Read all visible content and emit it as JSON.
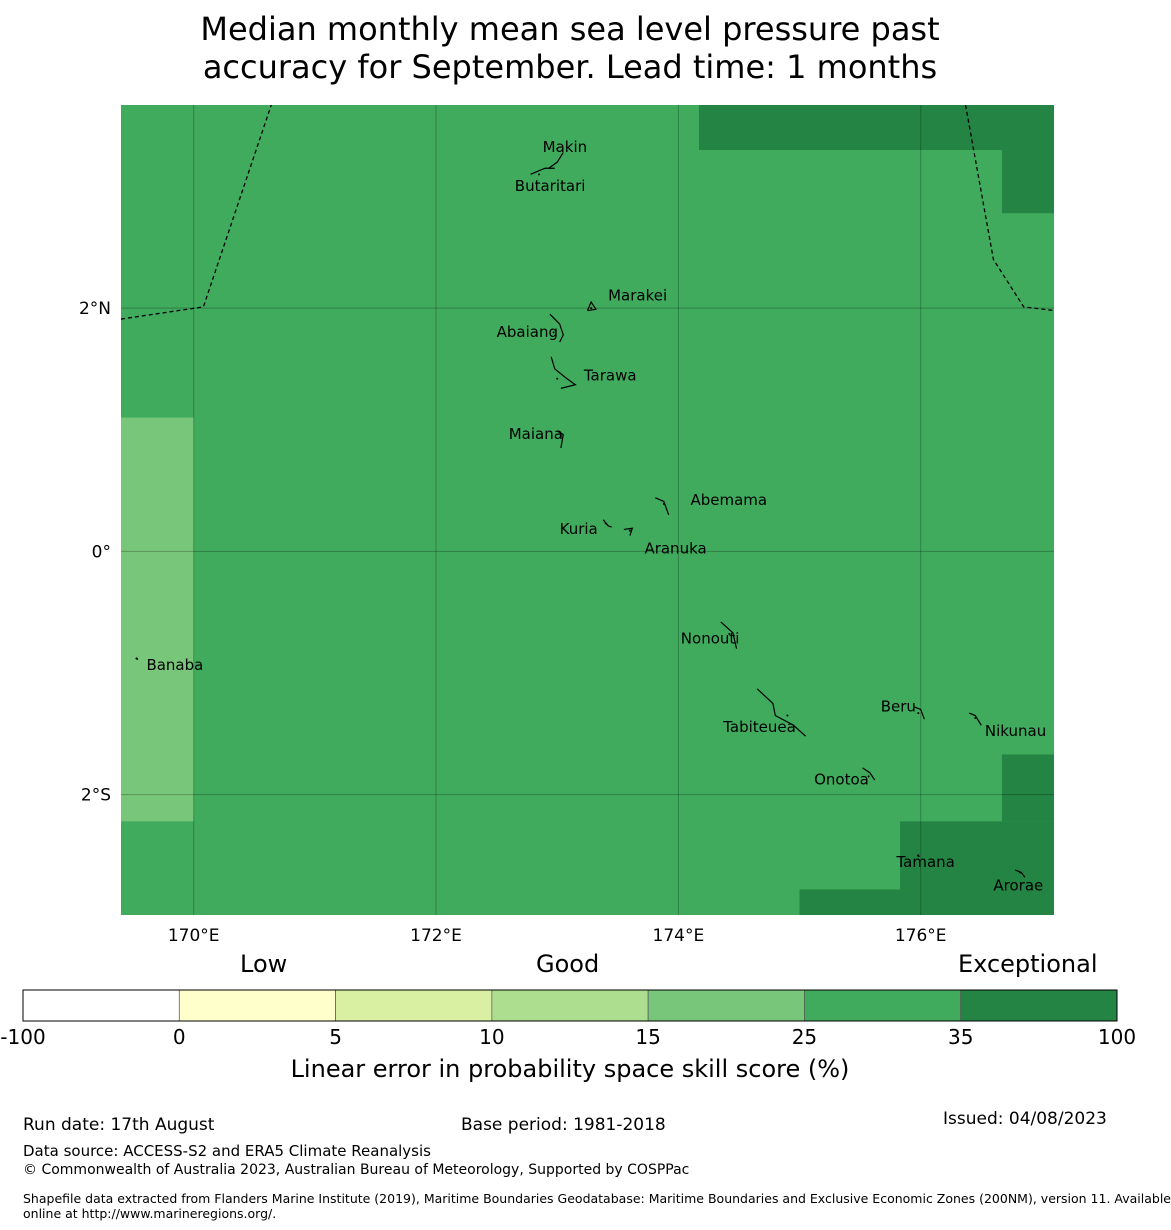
{
  "title": {
    "line1": "Median monthly mean sea level pressure past",
    "line2": "accuracy for September. Lead time: 1 months"
  },
  "map": {
    "lon_range": [
      169.4,
      177.1
    ],
    "lat_range": [
      -2.99,
      3.67
    ],
    "lon_ticks": [
      {
        "value": 170,
        "label": "170°E"
      },
      {
        "value": 172,
        "label": "172°E"
      },
      {
        "value": 174,
        "label": "174°E"
      },
      {
        "value": 176,
        "label": "176°E"
      }
    ],
    "lat_ticks": [
      {
        "value": 2,
        "label": "2°N"
      },
      {
        "value": 0,
        "label": "0°"
      },
      {
        "value": -2,
        "label": "2°S"
      }
    ],
    "base_color": "#41ab5d",
    "cells": [
      {
        "lon": [
          169.4,
          170.0
        ],
        "lat": [
          -2.22,
          1.1
        ],
        "color": "#78c679"
      },
      {
        "lon": [
          174.17,
          177.1
        ],
        "lat": [
          3.3,
          3.67
        ],
        "color": "#238443"
      },
      {
        "lon": [
          176.67,
          177.1
        ],
        "lat": [
          2.78,
          3.3
        ],
        "color": "#238443"
      },
      {
        "lon": [
          176.67,
          177.1
        ],
        "lat": [
          -1.67,
          -2.22
        ],
        "color": "#238443"
      },
      {
        "lon": [
          175.83,
          177.1
        ],
        "lat": [
          -2.22,
          -2.78
        ],
        "color": "#238443"
      },
      {
        "lon": [
          175.0,
          177.1
        ],
        "lat": [
          -2.78,
          -2.99
        ],
        "color": "#238443"
      }
    ],
    "boundaries": [
      [
        [
          169.4,
          1.91
        ],
        [
          170.08,
          2.01
        ],
        [
          170.64,
          3.67
        ]
      ],
      [
        [
          176.37,
          3.67
        ],
        [
          176.6,
          2.4
        ],
        [
          176.85,
          2.01
        ],
        [
          177.1,
          1.98
        ]
      ]
    ],
    "islands": [
      {
        "name": "Makin",
        "lon": 173.0,
        "lat": 3.31,
        "label": [
          172.88,
          3.32
        ],
        "outline": [
          [
            172.93,
            3.15
          ],
          [
            173.0,
            3.2
          ],
          [
            173.05,
            3.28
          ]
        ]
      },
      {
        "name": "Butaritari",
        "lon": 172.85,
        "lat": 3.1,
        "label": [
          172.65,
          3.0
        ],
        "outline": [
          [
            172.78,
            3.1
          ],
          [
            172.9,
            3.15
          ],
          [
            172.98,
            3.15
          ]
        ]
      },
      {
        "name": "Marakei",
        "lon": 173.28,
        "lat": 2.0,
        "label": [
          173.42,
          2.1
        ],
        "outline": [
          [
            173.25,
            1.98
          ],
          [
            173.28,
            2.05
          ],
          [
            173.32,
            1.99
          ],
          [
            173.25,
            1.98
          ]
        ]
      },
      {
        "name": "Abaiang",
        "lon": 172.97,
        "lat": 1.8,
        "label": [
          172.5,
          1.8
        ],
        "outline": [
          [
            172.94,
            1.95
          ],
          [
            173.02,
            1.87
          ],
          [
            173.05,
            1.78
          ],
          [
            173.02,
            1.72
          ]
        ]
      },
      {
        "name": "Tarawa",
        "lon": 173.0,
        "lat": 1.42,
        "label": [
          173.22,
          1.44
        ],
        "outline": [
          [
            172.95,
            1.6
          ],
          [
            172.98,
            1.5
          ],
          [
            173.08,
            1.42
          ],
          [
            173.15,
            1.37
          ],
          [
            173.03,
            1.34
          ]
        ]
      },
      {
        "name": "Maiana",
        "lon": 173.03,
        "lat": 0.95,
        "label": [
          172.6,
          0.96
        ],
        "outline": [
          [
            173.0,
            0.99
          ],
          [
            173.05,
            0.96
          ],
          [
            173.03,
            0.85
          ]
        ]
      },
      {
        "name": "Abemama",
        "lon": 173.88,
        "lat": 0.39,
        "label": [
          174.1,
          0.42
        ],
        "outline": [
          [
            173.81,
            0.44
          ],
          [
            173.88,
            0.41
          ],
          [
            173.92,
            0.3
          ]
        ]
      },
      {
        "name": "Kuria",
        "lon": 173.4,
        "lat": 0.23,
        "label": [
          173.02,
          0.18
        ],
        "outline": [
          [
            173.38,
            0.26
          ],
          [
            173.42,
            0.21
          ],
          [
            173.45,
            0.2
          ]
        ]
      },
      {
        "name": "Aranuka",
        "lon": 173.6,
        "lat": 0.17,
        "label": [
          173.72,
          0.02
        ],
        "outline": [
          [
            173.55,
            0.18
          ],
          [
            173.62,
            0.19
          ],
          [
            173.6,
            0.13
          ]
        ]
      },
      {
        "name": "Nonouti",
        "lon": 174.42,
        "lat": -0.68,
        "label": [
          174.02,
          -0.72
        ],
        "outline": [
          [
            174.35,
            -0.58
          ],
          [
            174.45,
            -0.67
          ],
          [
            174.48,
            -0.8
          ]
        ]
      },
      {
        "name": "Tabiteuea",
        "lon": 174.9,
        "lat": -1.35,
        "label": [
          174.37,
          -1.45
        ],
        "outline": [
          [
            174.65,
            -1.13
          ],
          [
            174.78,
            -1.25
          ],
          [
            174.8,
            -1.35
          ],
          [
            174.95,
            -1.43
          ],
          [
            175.05,
            -1.52
          ]
        ]
      },
      {
        "name": "Beru",
        "lon": 175.98,
        "lat": -1.33,
        "label": [
          175.67,
          -1.28
        ],
        "outline": [
          [
            175.95,
            -1.28
          ],
          [
            176.0,
            -1.3
          ],
          [
            176.03,
            -1.38
          ]
        ]
      },
      {
        "name": "Nikunau",
        "lon": 176.45,
        "lat": -1.37,
        "label": [
          176.53,
          -1.48
        ],
        "outline": [
          [
            176.4,
            -1.33
          ],
          [
            176.45,
            -1.35
          ],
          [
            176.5,
            -1.43
          ]
        ]
      },
      {
        "name": "Onotoa",
        "lon": 175.57,
        "lat": -1.85,
        "label": [
          175.12,
          -1.88
        ],
        "outline": [
          [
            175.52,
            -1.78
          ],
          [
            175.58,
            -1.82
          ],
          [
            175.62,
            -1.88
          ]
        ]
      },
      {
        "name": "Tamana",
        "lon": 175.98,
        "lat": -2.5,
        "label": [
          175.8,
          -2.56
        ],
        "outline": [
          [
            175.97,
            -2.5
          ],
          [
            175.99,
            -2.51
          ]
        ]
      },
      {
        "name": "Arorae",
        "lon": 176.82,
        "lat": -2.64,
        "label": [
          176.6,
          -2.75
        ],
        "outline": [
          [
            176.78,
            -2.62
          ],
          [
            176.83,
            -2.64
          ],
          [
            176.86,
            -2.68
          ]
        ]
      },
      {
        "name": "Banaba",
        "lon": 169.53,
        "lat": -0.88,
        "label": [
          169.61,
          -0.94
        ],
        "outline": [
          [
            169.52,
            -0.88
          ],
          [
            169.54,
            -0.89
          ]
        ]
      }
    ]
  },
  "colorbar": {
    "words": {
      "low": "Low",
      "good": "Good",
      "exceptional": "Exceptional"
    },
    "bins": [
      {
        "from": -100,
        "to": 0,
        "color": "#ffffff"
      },
      {
        "from": 0,
        "to": 5,
        "color": "#ffffcc"
      },
      {
        "from": 5,
        "to": 10,
        "color": "#d9f0a3"
      },
      {
        "from": 10,
        "to": 15,
        "color": "#addd8e"
      },
      {
        "from": 15,
        "to": 25,
        "color": "#78c679"
      },
      {
        "from": 25,
        "to": 35,
        "color": "#41ab5d"
      },
      {
        "from": 35,
        "to": 100,
        "color": "#238443"
      }
    ],
    "ticks": [
      "-100",
      "0",
      "5",
      "10",
      "15",
      "25",
      "35",
      "100"
    ],
    "label": "Linear error in probability space skill score (%)"
  },
  "footer": {
    "run_date": "Run date: 17th August",
    "base_period": "Base period: 1981-2018",
    "issued": "Issued: 04/08/2023",
    "data_source": "Data source: ACCESS-S2 and ERA5 Climate Reanalysis",
    "copyright": "© Commonwealth of Australia 2023, Australian Bureau of Meteorology, Supported by COSPPac",
    "shapefile_line1": "Shapefile data extracted from Flanders Marine Institute (2019), Maritime Boundaries Geodatabase: Maritime Boundaries and Exclusive Economic Zones (200NM), version 11. Available",
    "shapefile_line2": "online at http://www.marineregions.org/."
  }
}
